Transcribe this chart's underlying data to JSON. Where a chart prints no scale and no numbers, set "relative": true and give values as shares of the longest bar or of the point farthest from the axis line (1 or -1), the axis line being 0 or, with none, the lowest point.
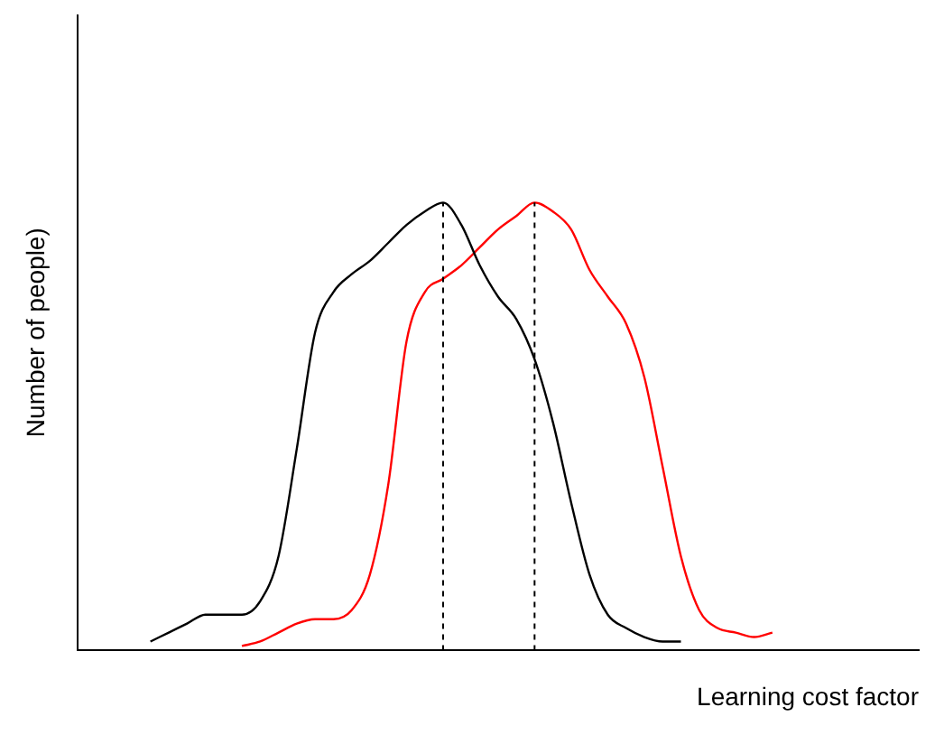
{
  "chart_data": {
    "type": "line",
    "relative": true,
    "xlabel": "Learning cost factor",
    "ylabel": "Number of people)",
    "categories": [
      null,
      null,
      null,
      null,
      null,
      null,
      null,
      null,
      null,
      null,
      null,
      null,
      null,
      null,
      null,
      null,
      null,
      null,
      null,
      null,
      null,
      null,
      null,
      null,
      null,
      null,
      null,
      null,
      null,
      null,
      null,
      null,
      null,
      null,
      null,
      null,
      null,
      null,
      null,
      null,
      null,
      null,
      null,
      null,
      null,
      null,
      null
    ],
    "series": [
      {
        "color": "#000000",
        "values": [
          null,
          null,
          null,
          null,
          0.02,
          0.04,
          0.06,
          0.08,
          0.08,
          0.08,
          0.11,
          0.21,
          0.45,
          0.71,
          0.8,
          0.84,
          0.87,
          0.91,
          0.95,
          0.98,
          1,
          0.95,
          0.86,
          0.79,
          0.74,
          0.65,
          0.51,
          0.33,
          0.17,
          0.08,
          0.05,
          0.03,
          0.02,
          0.02,
          null,
          null,
          null,
          null,
          null,
          null,
          null,
          null,
          null,
          null,
          null,
          null,
          null
        ]
      },
      {
        "color": "#ff0000",
        "values": [
          null,
          null,
          null,
          null,
          null,
          null,
          null,
          null,
          null,
          0.01,
          0.02,
          0.04,
          0.06,
          0.07,
          0.07,
          0.09,
          0.17,
          0.37,
          0.69,
          0.8,
          0.83,
          0.86,
          0.9,
          0.94,
          0.97,
          1,
          0.98,
          0.94,
          0.85,
          0.79,
          0.73,
          0.61,
          0.41,
          0.21,
          0.09,
          0.05,
          0.04,
          0.03,
          0.04,
          null,
          null,
          null,
          null,
          null,
          null,
          null,
          null
        ]
      }
    ],
    "grid": false,
    "legend": false,
    "marker": "none",
    "line_style": "solid"
  }
}
